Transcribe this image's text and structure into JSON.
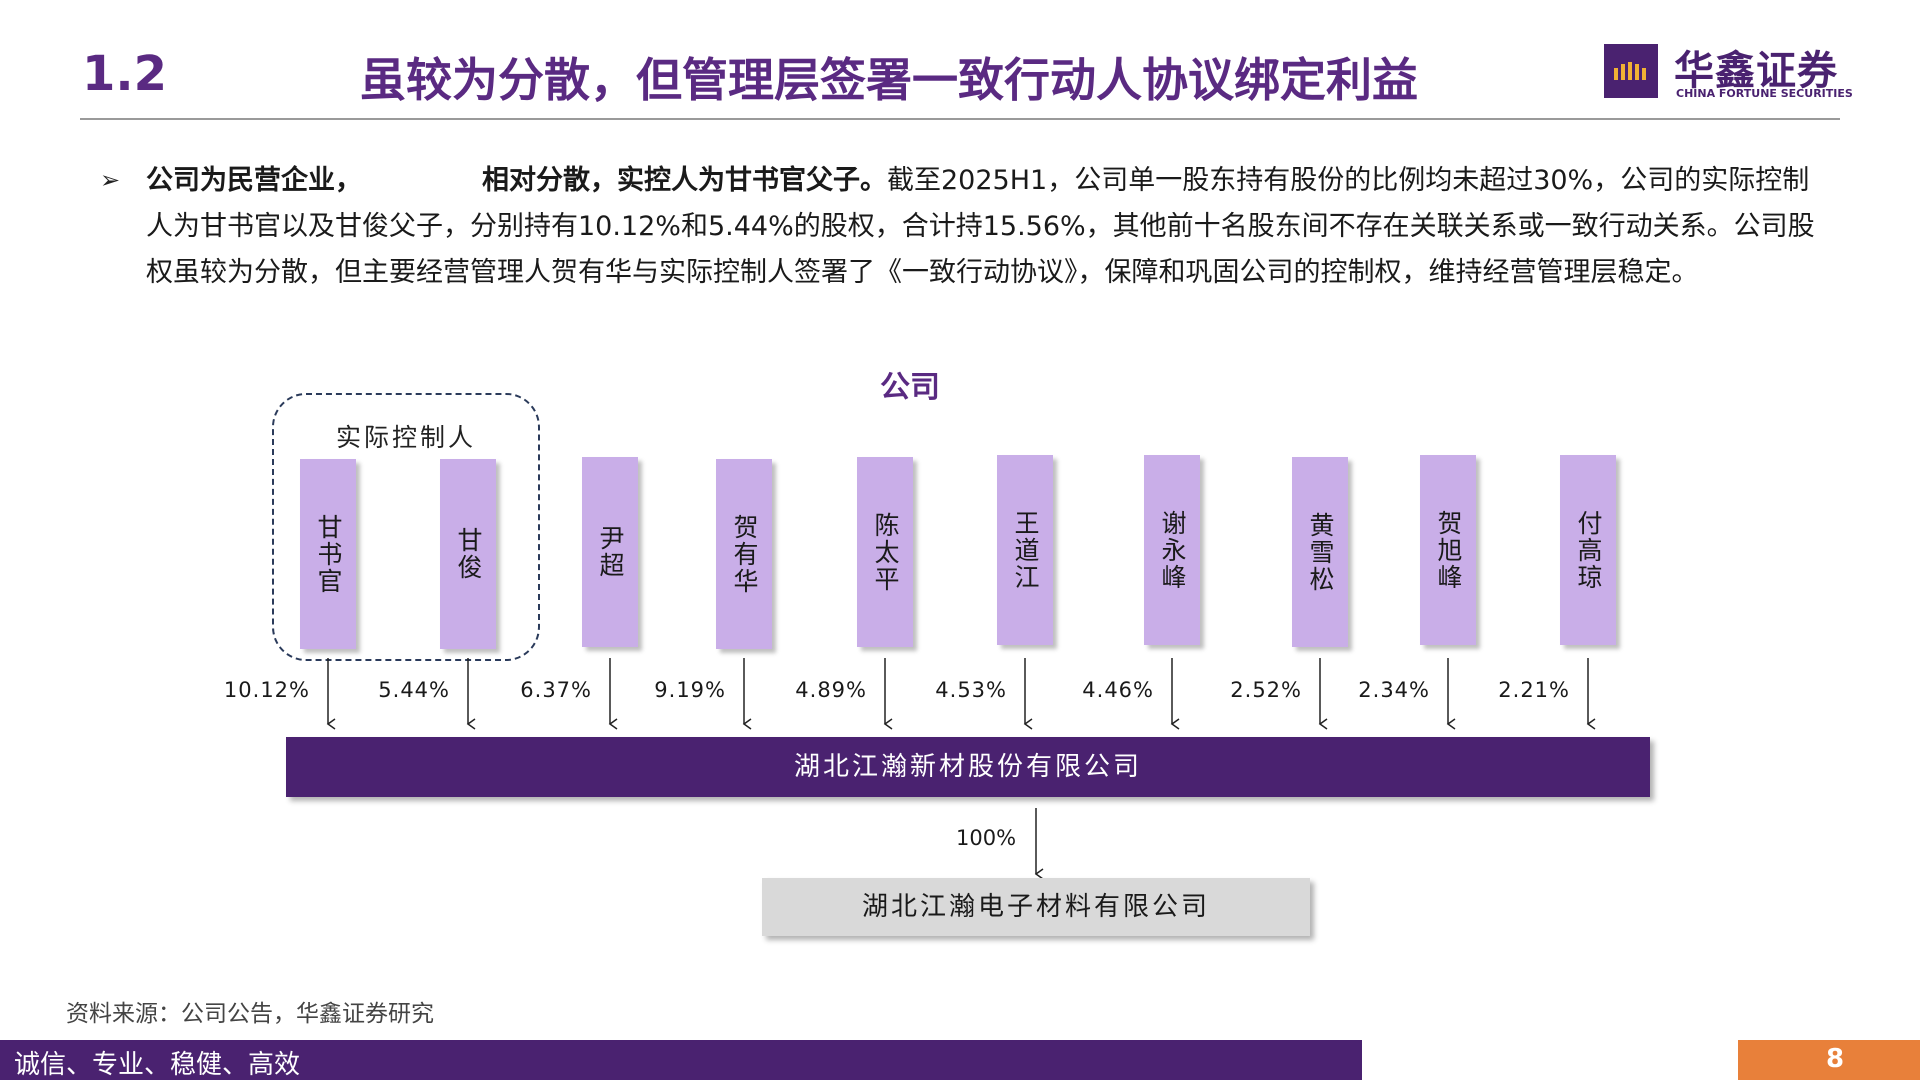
{
  "header": {
    "section_number": "1.2",
    "title": "虽较为分散，但管理层签署一致行动人协议绑定利益",
    "logo_cn": "华鑫证券",
    "logo_en": "CHINA FORTUNE SECURITIES"
  },
  "body": {
    "bullet_bold_1": "公司为民营企业，",
    "bullet_bold_2": "相对分散，实控人为甘书官父子。",
    "bullet_text": "截至2025H1，公司单一股东持有股份的比例均未超过30%，公司的实际控制人为甘书官以及甘俊父子，分别持有10.12%和5.44%的股权，合计持15.56%，其他前十名股东间不存在关联关系或一致行动关系。公司股权虽较为分散，但主要经营管理人贺有华与实际控制人签署了《一致行动协议》，保障和巩固公司的控制权，维持经营管理层稳定。"
  },
  "diagram": {
    "top_label": "公司",
    "controller_label": "实际控制人",
    "holders": [
      {
        "name": "甘书官",
        "pct": "10.12%"
      },
      {
        "name": "甘俊",
        "pct": "5.44%"
      },
      {
        "name": "尹超",
        "pct": "6.37%"
      },
      {
        "name": "贺有华",
        "pct": "9.19%"
      },
      {
        "name": "陈太平",
        "pct": "4.89%"
      },
      {
        "name": "王道江",
        "pct": "4.53%"
      },
      {
        "name": "谢永峰",
        "pct": "4.46%"
      },
      {
        "name": "黄雪松",
        "pct": "2.52%"
      },
      {
        "name": "贺旭峰",
        "pct": "2.34%"
      },
      {
        "name": "付高琼",
        "pct": "2.21%"
      }
    ],
    "main_company": "湖北江瀚新材股份有限公司",
    "sub_pct": "100%",
    "sub_company": "湖北江瀚电子材料有限公司"
  },
  "footer": {
    "source": "资料来源：公司公告，华鑫证券研究",
    "slogan": "诚信、专业、稳健、高效",
    "page_number": "8"
  },
  "colors": {
    "brand_purple": "#4a2270",
    "holder_fill": "#c9aee8",
    "accent_orange": "#e8803a"
  }
}
